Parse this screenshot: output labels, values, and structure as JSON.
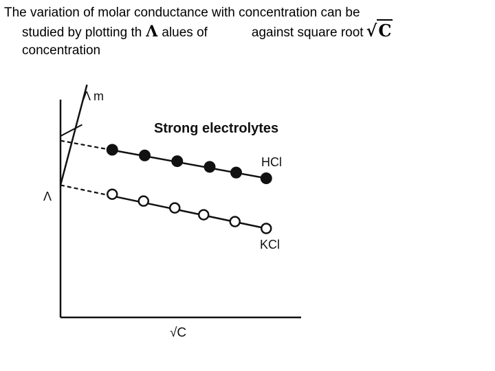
{
  "slide": {
    "line1": "The variation of molar conductance with concentration can be",
    "line2a": "studied by plotting th",
    "line2b": "alues of",
    "line2c": "against square root",
    "line3": "concentration",
    "lambda_symbol": "Λ",
    "sqrt_symbol": "√",
    "sqrt_arg": "C"
  },
  "chart_data": {
    "type": "scatter",
    "title": "Strong electrolytes",
    "ylabel": "Λ m",
    "xlabel": "√C",
    "intercept_label": "Λ",
    "xlim": [
      0,
      10
    ],
    "ylim": [
      0,
      10
    ],
    "series": [
      {
        "name": "HCl",
        "marker": "filled",
        "x": [
          2.15,
          3.5,
          4.85,
          6.2,
          7.3,
          8.55
        ],
        "y": [
          7.35,
          7.1,
          6.85,
          6.6,
          6.35,
          6.1
        ],
        "fit": {
          "x0": 0,
          "y0": 7.75,
          "x1": 8.55,
          "y1": 6.1,
          "dashed_until": 2.15
        }
      },
      {
        "name": "KCl",
        "marker": "open",
        "x": [
          2.15,
          3.45,
          4.75,
          5.95,
          7.25,
          8.55
        ],
        "y": [
          5.4,
          5.1,
          4.8,
          4.5,
          4.2,
          3.9
        ],
        "fit": {
          "x0": 0,
          "y0": 5.8,
          "x1": 8.55,
          "y1": 3.9,
          "dashed_until": 2.15
        }
      }
    ],
    "weak_curve": {
      "x": [
        0,
        1.1
      ],
      "y": [
        5.8,
        10.2
      ]
    },
    "colors": {
      "line": "#111111",
      "marker": "#111111"
    }
  }
}
